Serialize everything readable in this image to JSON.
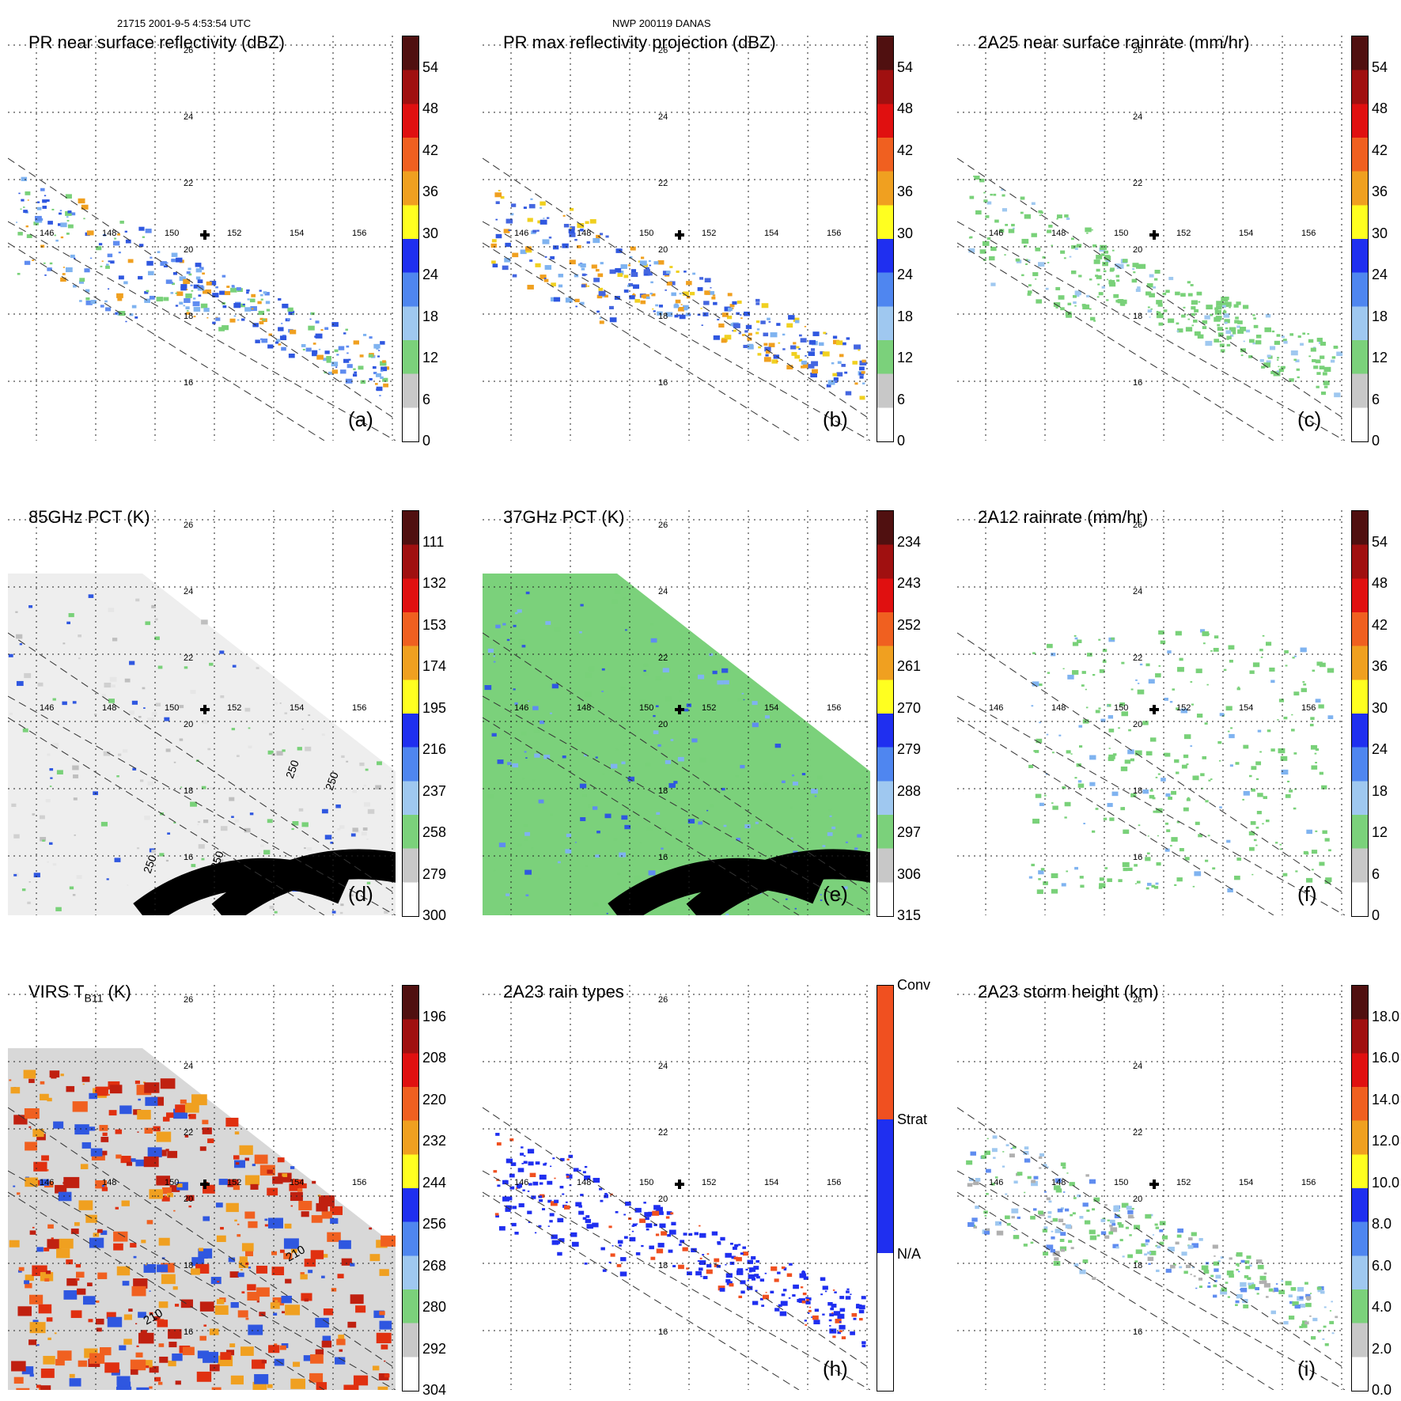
{
  "header": {
    "left": "21715 2001-9-5 4:53:54 UTC",
    "center": "NWP 200119 DANAS"
  },
  "lon_labels": [
    "146",
    "148",
    "150",
    "152",
    "154",
    "156"
  ],
  "lat_labels": [
    "26",
    "24",
    "22",
    "20",
    "18",
    "16"
  ],
  "panels": [
    {
      "id": "a",
      "title": "PR near surface reflectivity (dBZ)",
      "label": "(a)",
      "colorbar_ticks": [
        "54",
        "48",
        "42",
        "36",
        "30",
        "24",
        "18",
        "12",
        "6",
        "0"
      ],
      "field": "pr_swath",
      "colors": [
        "#2f57e0",
        "#5f8cf0",
        "#7fb3f0",
        "#79d179",
        "#f0a020"
      ]
    },
    {
      "id": "b",
      "title": "PR max reflectivity projection (dBZ)",
      "label": "(b)",
      "colorbar_ticks": [
        "54",
        "48",
        "42",
        "36",
        "30",
        "24",
        "18",
        "12",
        "6",
        "0"
      ],
      "field": "pr_swath",
      "colors": [
        "#2f57e0",
        "#4466e0",
        "#f0a020",
        "#f0d020",
        "#7fb3f0"
      ]
    },
    {
      "id": "c",
      "title": "2A25 near surface rainrate (mm/hr)",
      "label": "(c)",
      "colorbar_ticks": [
        "54",
        "48",
        "42",
        "36",
        "30",
        "24",
        "18",
        "12",
        "6",
        "0"
      ],
      "field": "pr_swath",
      "colors": [
        "#79d179",
        "#79d179",
        "#79d179",
        "#9fc8f0",
        "#79d179"
      ]
    },
    {
      "id": "d",
      "title": "85GHz PCT (K)",
      "label": "(d)",
      "colorbar_ticks": [
        "111",
        "132",
        "153",
        "174",
        "195",
        "216",
        "237",
        "258",
        "279",
        "300"
      ],
      "field": "tmi_swath",
      "colors": [
        "#e6e6e6",
        "#d0d0d0",
        "#bfbfbf",
        "#79d179",
        "#2f57e0"
      ]
    },
    {
      "id": "e",
      "title": "37GHz PCT (K)",
      "label": "(e)",
      "colorbar_ticks": [
        "234",
        "243",
        "252",
        "261",
        "270",
        "279",
        "288",
        "297",
        "306",
        "315"
      ],
      "field": "tmi_swath",
      "colors": [
        "#79d179",
        "#79d179",
        "#7fb3f0",
        "#5f8cf0",
        "#2f57e0"
      ]
    },
    {
      "id": "f",
      "title": "2A12 rainrate (mm/hr)",
      "label": "(f)",
      "colorbar_ticks": [
        "54",
        "48",
        "42",
        "36",
        "30",
        "24",
        "18",
        "12",
        "6",
        "0"
      ],
      "field": "rain_blob",
      "colors": [
        "#79d179",
        "#79d179",
        "#7fb3f0",
        "#79d179",
        "#79d179"
      ]
    },
    {
      "id": "g",
      "title": "VIRS T",
      "title_sub": "B11",
      "title_suffix": "(K)",
      "label": "",
      "colorbar_ticks": [
        "196",
        "208",
        "220",
        "232",
        "244",
        "256",
        "268",
        "280",
        "292",
        "304"
      ],
      "field": "virs_swath",
      "colors": [
        "#e03010",
        "#f06020",
        "#f0a020",
        "#c02010",
        "#2f57e0"
      ]
    },
    {
      "id": "h",
      "title": "2A23 rain types",
      "label": "(h)",
      "colorbar_ticks": [
        "Conv",
        "Strat",
        "N/A"
      ],
      "field": "pr_swath",
      "colors": [
        "#1f2ff0",
        "#1f2ff0",
        "#1f2ff0",
        "#f05020",
        "#1f2ff0"
      ]
    },
    {
      "id": "i",
      "title": "2A23 storm height (km)",
      "label": "(i)",
      "colorbar_ticks": [
        "18.0",
        "16.0",
        "14.0",
        "12.0",
        "10.0",
        "8.0",
        "6.0",
        "4.0",
        "2.0",
        "0.0"
      ],
      "field": "pr_swath",
      "colors": [
        "#79d179",
        "#9fc8f0",
        "#79d179",
        "#5f8cf0",
        "#b0b0b0"
      ]
    }
  ],
  "contour_labels_d": [
    "250",
    "250",
    "250",
    "250"
  ],
  "contour_labels_g": [
    "210",
    "210"
  ],
  "colorbar_colors": [
    "#ffffff",
    "#c8c8c8",
    "#7bd17b",
    "#9fc8f0",
    "#4f86f0",
    "#1f2ff0",
    "#ffff20",
    "#f0a020",
    "#f06020",
    "#e01010",
    "#a01010",
    "#501010"
  ],
  "rain_type_colors": [
    "#ffffff",
    "#1f2ff0",
    "#f05020"
  ]
}
